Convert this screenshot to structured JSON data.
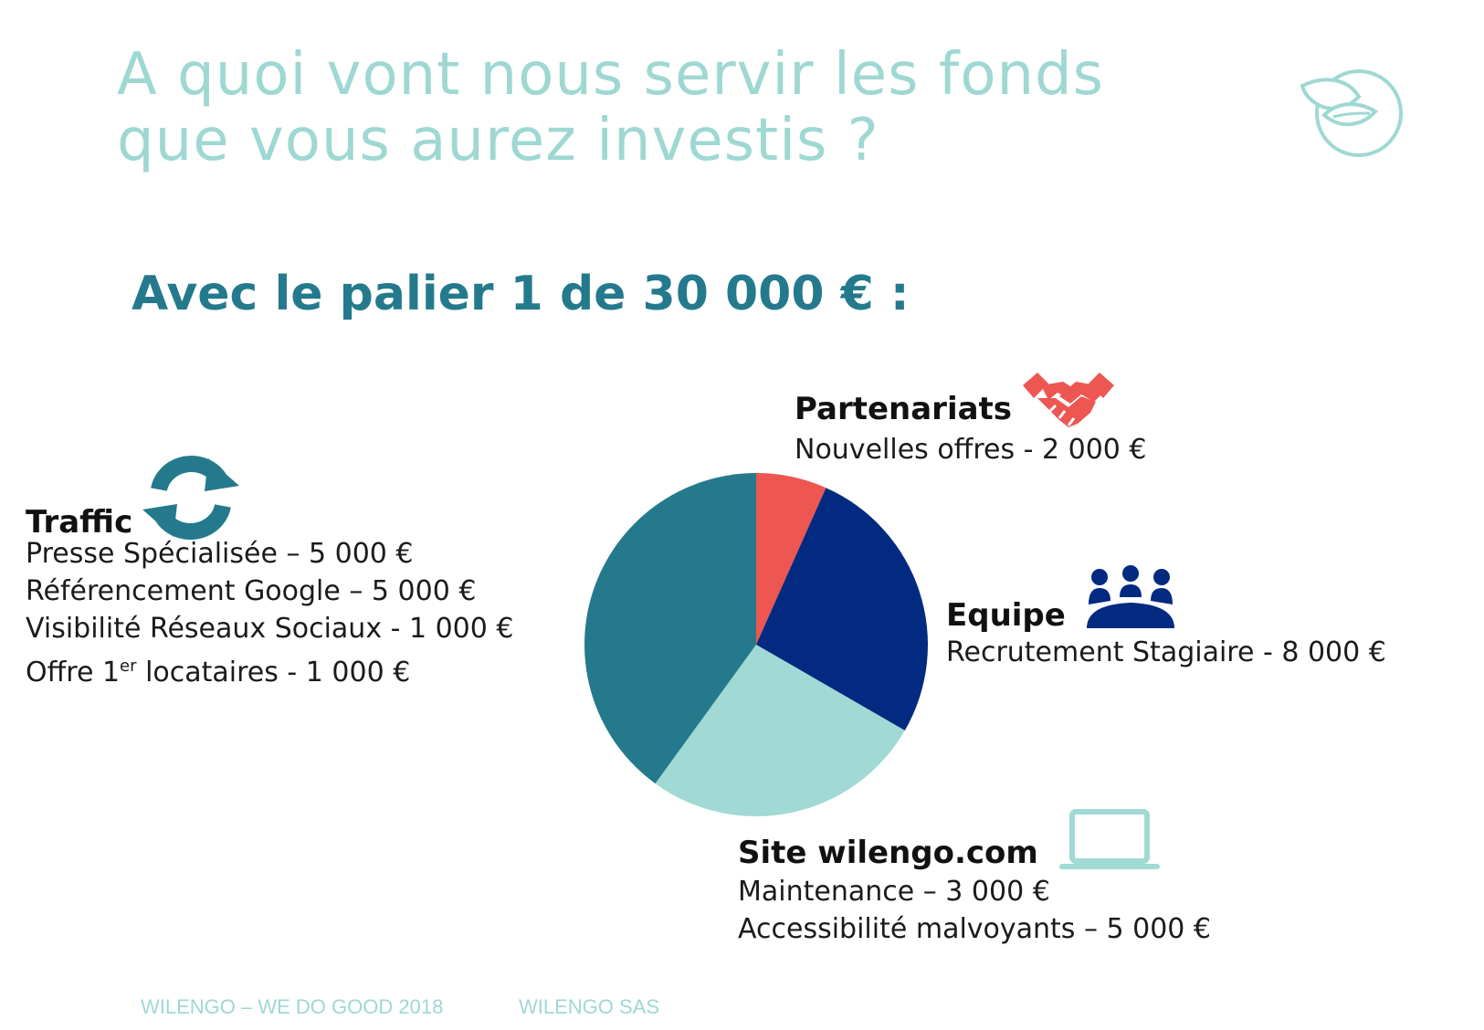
{
  "title": {
    "line1": "A quoi vont nous servir les fonds",
    "line2": "que vous aurez investis ?"
  },
  "subtitle": "Avec le palier 1 de 30 000 € :",
  "colors": {
    "title": "#9fd8d3",
    "subtitle": "#247a8c",
    "partenariats": "#ee5652",
    "equipe": "#012a80",
    "site": "#a1d9d4",
    "traffic": "#247a8c"
  },
  "groups": {
    "traffic": {
      "heading": "Traffic",
      "icon": "refresh-icon",
      "lines": [
        "Presse Spécialisée – 5 000 €",
        "Référencement Google – 5 000 €",
        "Visibilité Réseaux Sociaux - 1 000 €"
      ],
      "last_line_prefix": "Offre 1",
      "last_line_sup": "er",
      "last_line_suffix": " locataires - 1 000 €"
    },
    "partenariats": {
      "heading": "Partenariats",
      "icon": "handshake-icon",
      "lines": [
        "Nouvelles offres -  2 000 €"
      ]
    },
    "equipe": {
      "heading": "Equipe",
      "icon": "team-meeting-icon",
      "lines": [
        "Recrutement Stagiaire - 8 000 €"
      ]
    },
    "site": {
      "heading": "Site wilengo.com",
      "icon": "laptop-icon",
      "lines": [
        "Maintenance – 3 000 €",
        "Accessibilité malvoyants – 5 000 €"
      ]
    }
  },
  "logo_icon": "leaf-circle-icon",
  "footer": {
    "left": "WILENGO – WE DO GOOD 2018",
    "right": "WILENGO SAS"
  },
  "chart_data": {
    "type": "pie",
    "unit": "€",
    "start_angle_deg": 0,
    "direction": "clockwise",
    "categories": [
      "Partenariats",
      "Equipe",
      "Site wilengo.com",
      "Traffic"
    ],
    "values": [
      2000,
      8000,
      8000,
      12000
    ],
    "colors": [
      "#ee5652",
      "#012a80",
      "#a1d9d4",
      "#247a8c"
    ]
  }
}
